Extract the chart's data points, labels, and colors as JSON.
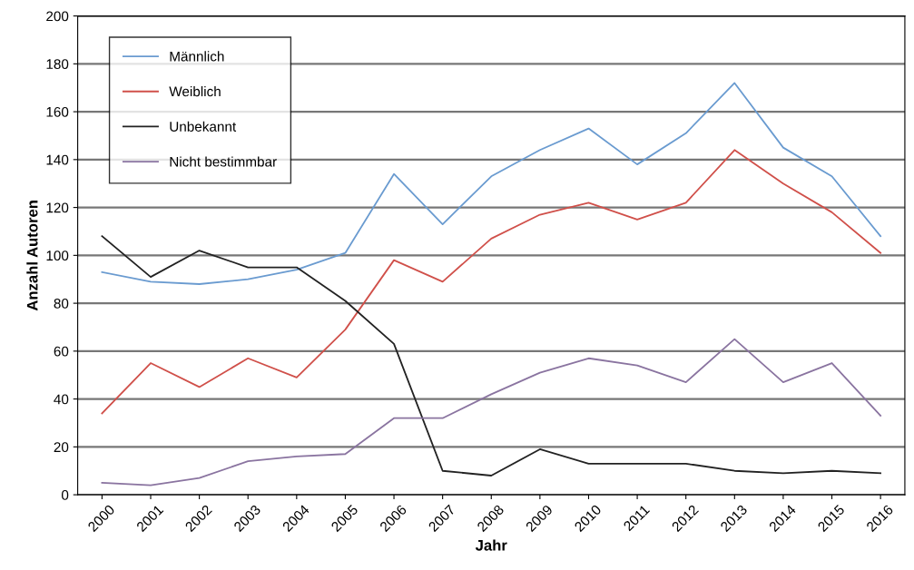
{
  "chart_data": {
    "type": "line",
    "xlabel": "Jahr",
    "ylabel": "Anzahl Autoren",
    "categories": [
      "2000",
      "2001",
      "2002",
      "2003",
      "2004",
      "2005",
      "2006",
      "2007",
      "2008",
      "2009",
      "2010",
      "2011",
      "2012",
      "2013",
      "2014",
      "2015",
      "2016"
    ],
    "series": [
      {
        "name": "Männlich",
        "color": "#6a9bd0",
        "values": [
          93,
          89,
          88,
          90,
          94,
          101,
          134,
          113,
          133,
          144,
          153,
          138,
          151,
          172,
          145,
          133,
          108
        ]
      },
      {
        "name": "Weiblich",
        "color": "#d0504a",
        "values": [
          34,
          55,
          45,
          57,
          49,
          69,
          98,
          89,
          107,
          117,
          122,
          115,
          122,
          144,
          130,
          118,
          101
        ]
      },
      {
        "name": "Unbekannt",
        "color": "#222222",
        "values": [
          108,
          91,
          102,
          95,
          95,
          81,
          63,
          10,
          8,
          19,
          13,
          13,
          13,
          10,
          9,
          10,
          9
        ]
      },
      {
        "name": "Nicht bestimmbar",
        "color": "#8a74a0",
        "values": [
          5,
          4,
          7,
          14,
          16,
          17,
          32,
          32,
          42,
          51,
          57,
          54,
          47,
          65,
          47,
          55,
          33
        ]
      }
    ],
    "ylim": [
      0,
      200
    ],
    "yticks": [
      0,
      20,
      40,
      60,
      80,
      100,
      120,
      140,
      160,
      180,
      200
    ],
    "grid": "y",
    "legend": "top left",
    "marker": "none",
    "line_style": "solid"
  }
}
